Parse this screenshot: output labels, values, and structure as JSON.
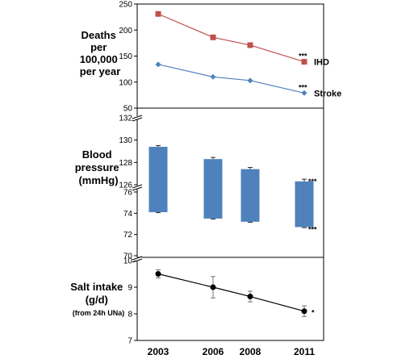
{
  "chart_data": [
    {
      "type": "line",
      "ylabel_lines": [
        "Deaths",
        "per",
        "100,000",
        "per year"
      ],
      "x": [
        2003,
        2006,
        2008,
        2011
      ],
      "ylim": [
        50,
        250
      ],
      "yticks": [
        50,
        100,
        150,
        200,
        250
      ],
      "series": [
        {
          "name": "IHD",
          "color": "#c0504d",
          "marker": "square",
          "values": [
            231,
            186,
            171,
            139
          ],
          "end_annotation": "***"
        },
        {
          "name": "Stroke",
          "color": "#4f81bd",
          "marker": "diamond",
          "values": [
            134,
            110,
            103,
            79
          ],
          "end_annotation": "***"
        }
      ]
    },
    {
      "type": "bar",
      "subtype": "floating-range",
      "ylabel_lines": [
        "Blood",
        "pressure",
        "(mmHg)"
      ],
      "x": [
        2003,
        2006,
        2008,
        2011
      ],
      "color": "#4f81bd",
      "axis_break": true,
      "upper": {
        "ylim": [
          126,
          132
        ],
        "yticks": [
          126,
          128,
          130,
          132
        ],
        "values": [
          129.4,
          128.3,
          127.4,
          126.3
        ],
        "errors": [
          0.1,
          0.15,
          0.15,
          0.2
        ],
        "end_annotation": "***"
      },
      "lower": {
        "ylim": [
          70,
          76
        ],
        "yticks": [
          70,
          72,
          74,
          76
        ],
        "values": [
          74.1,
          73.5,
          73.2,
          72.7
        ],
        "errors": [
          0.05,
          0.05,
          0.05,
          0.05
        ],
        "end_annotation": "***"
      }
    },
    {
      "type": "line",
      "ylabel_lines": [
        "Salt intake",
        "(g/d)",
        "(from 24h UNa)"
      ],
      "x": [
        2003,
        2006,
        2008,
        2011
      ],
      "ylim": [
        7,
        10
      ],
      "yticks": [
        7,
        8,
        9,
        10
      ],
      "series": [
        {
          "color": "#000000",
          "marker": "circle",
          "values": [
            9.5,
            9.0,
            8.65,
            8.1
          ],
          "errors": [
            0.15,
            0.4,
            0.2,
            0.2
          ],
          "end_annotation": "*"
        }
      ]
    }
  ],
  "x_tick_labels": [
    "2003",
    "2006",
    "2008",
    "2011"
  ]
}
